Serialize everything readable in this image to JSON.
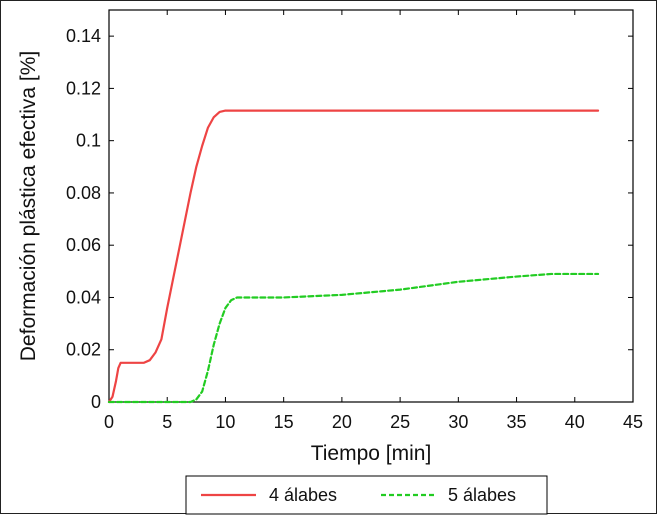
{
  "chart_data": {
    "type": "line",
    "title": "",
    "xlabel": "Tiempo [min]",
    "ylabel": "Deformación plástica efectiva [%]",
    "xlim": [
      0,
      45
    ],
    "ylim": [
      0,
      0.15
    ],
    "xticks": [
      0,
      5,
      10,
      15,
      20,
      25,
      30,
      35,
      40,
      45
    ],
    "xtick_labels": [
      "0",
      "5",
      "10",
      "15",
      "20",
      "25",
      "30",
      "35",
      "40",
      "45"
    ],
    "yticks": [
      0,
      0.02,
      0.04,
      0.06,
      0.08,
      0.1,
      0.12,
      0.14
    ],
    "ytick_labels": [
      "0",
      "0.02",
      "0.04",
      "0.06",
      "0.08",
      "0.1",
      "0.12",
      "0.14"
    ],
    "grid": false,
    "legend_position": "bottom",
    "series": [
      {
        "name": "4 álabes",
        "color": "#ee4444",
        "style": "solid",
        "x": [
          0,
          0.3,
          0.6,
          0.8,
          1.0,
          2.0,
          3.0,
          3.5,
          4.0,
          4.5,
          5.0,
          5.5,
          6.0,
          6.5,
          7.0,
          7.5,
          8.0,
          8.5,
          9.0,
          9.5,
          10.0,
          11.0,
          15.0,
          20.0,
          25.0,
          30.0,
          35.0,
          40.0,
          42.0
        ],
        "y": [
          0,
          0.002,
          0.008,
          0.013,
          0.015,
          0.015,
          0.015,
          0.016,
          0.019,
          0.024,
          0.036,
          0.047,
          0.058,
          0.069,
          0.08,
          0.09,
          0.098,
          0.105,
          0.109,
          0.111,
          0.1115,
          0.1115,
          0.1115,
          0.1115,
          0.1115,
          0.1115,
          0.1115,
          0.1115,
          0.1115
        ]
      },
      {
        "name": "5 álabes",
        "color": "#22cc22",
        "style": "dashed",
        "x": [
          0,
          7.0,
          7.5,
          8.0,
          8.5,
          9.0,
          9.5,
          10.0,
          10.5,
          11.0,
          15.0,
          20.0,
          25.0,
          30.0,
          35.0,
          38.0,
          42.0
        ],
        "y": [
          0,
          0,
          0.001,
          0.004,
          0.012,
          0.022,
          0.03,
          0.036,
          0.039,
          0.04,
          0.04,
          0.041,
          0.043,
          0.046,
          0.048,
          0.049,
          0.049
        ]
      }
    ]
  }
}
